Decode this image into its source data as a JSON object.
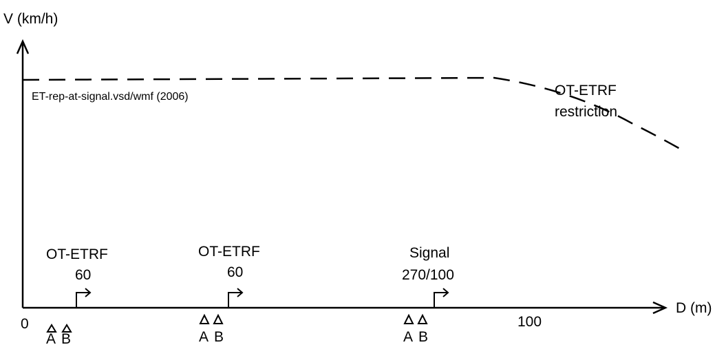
{
  "axes": {
    "y_label": "V (km/h)",
    "x_label": "D (m)",
    "origin_label": "0",
    "x_tick_label": "100"
  },
  "caption": "ET-rep-at-signal.vsd/wmf (2006)",
  "curve": {
    "label_line1": "OT-ETRF",
    "label_line2": "restriction"
  },
  "markers": [
    {
      "title": "OT-ETRF",
      "value": "60",
      "balise_a": "A",
      "balise_b": "B"
    },
    {
      "title": "OT-ETRF",
      "value": "60",
      "balise_a": "A",
      "balise_b": "B"
    },
    {
      "title": "Signal",
      "value": "270/100",
      "balise_a": "A",
      "balise_b": "B"
    }
  ]
}
